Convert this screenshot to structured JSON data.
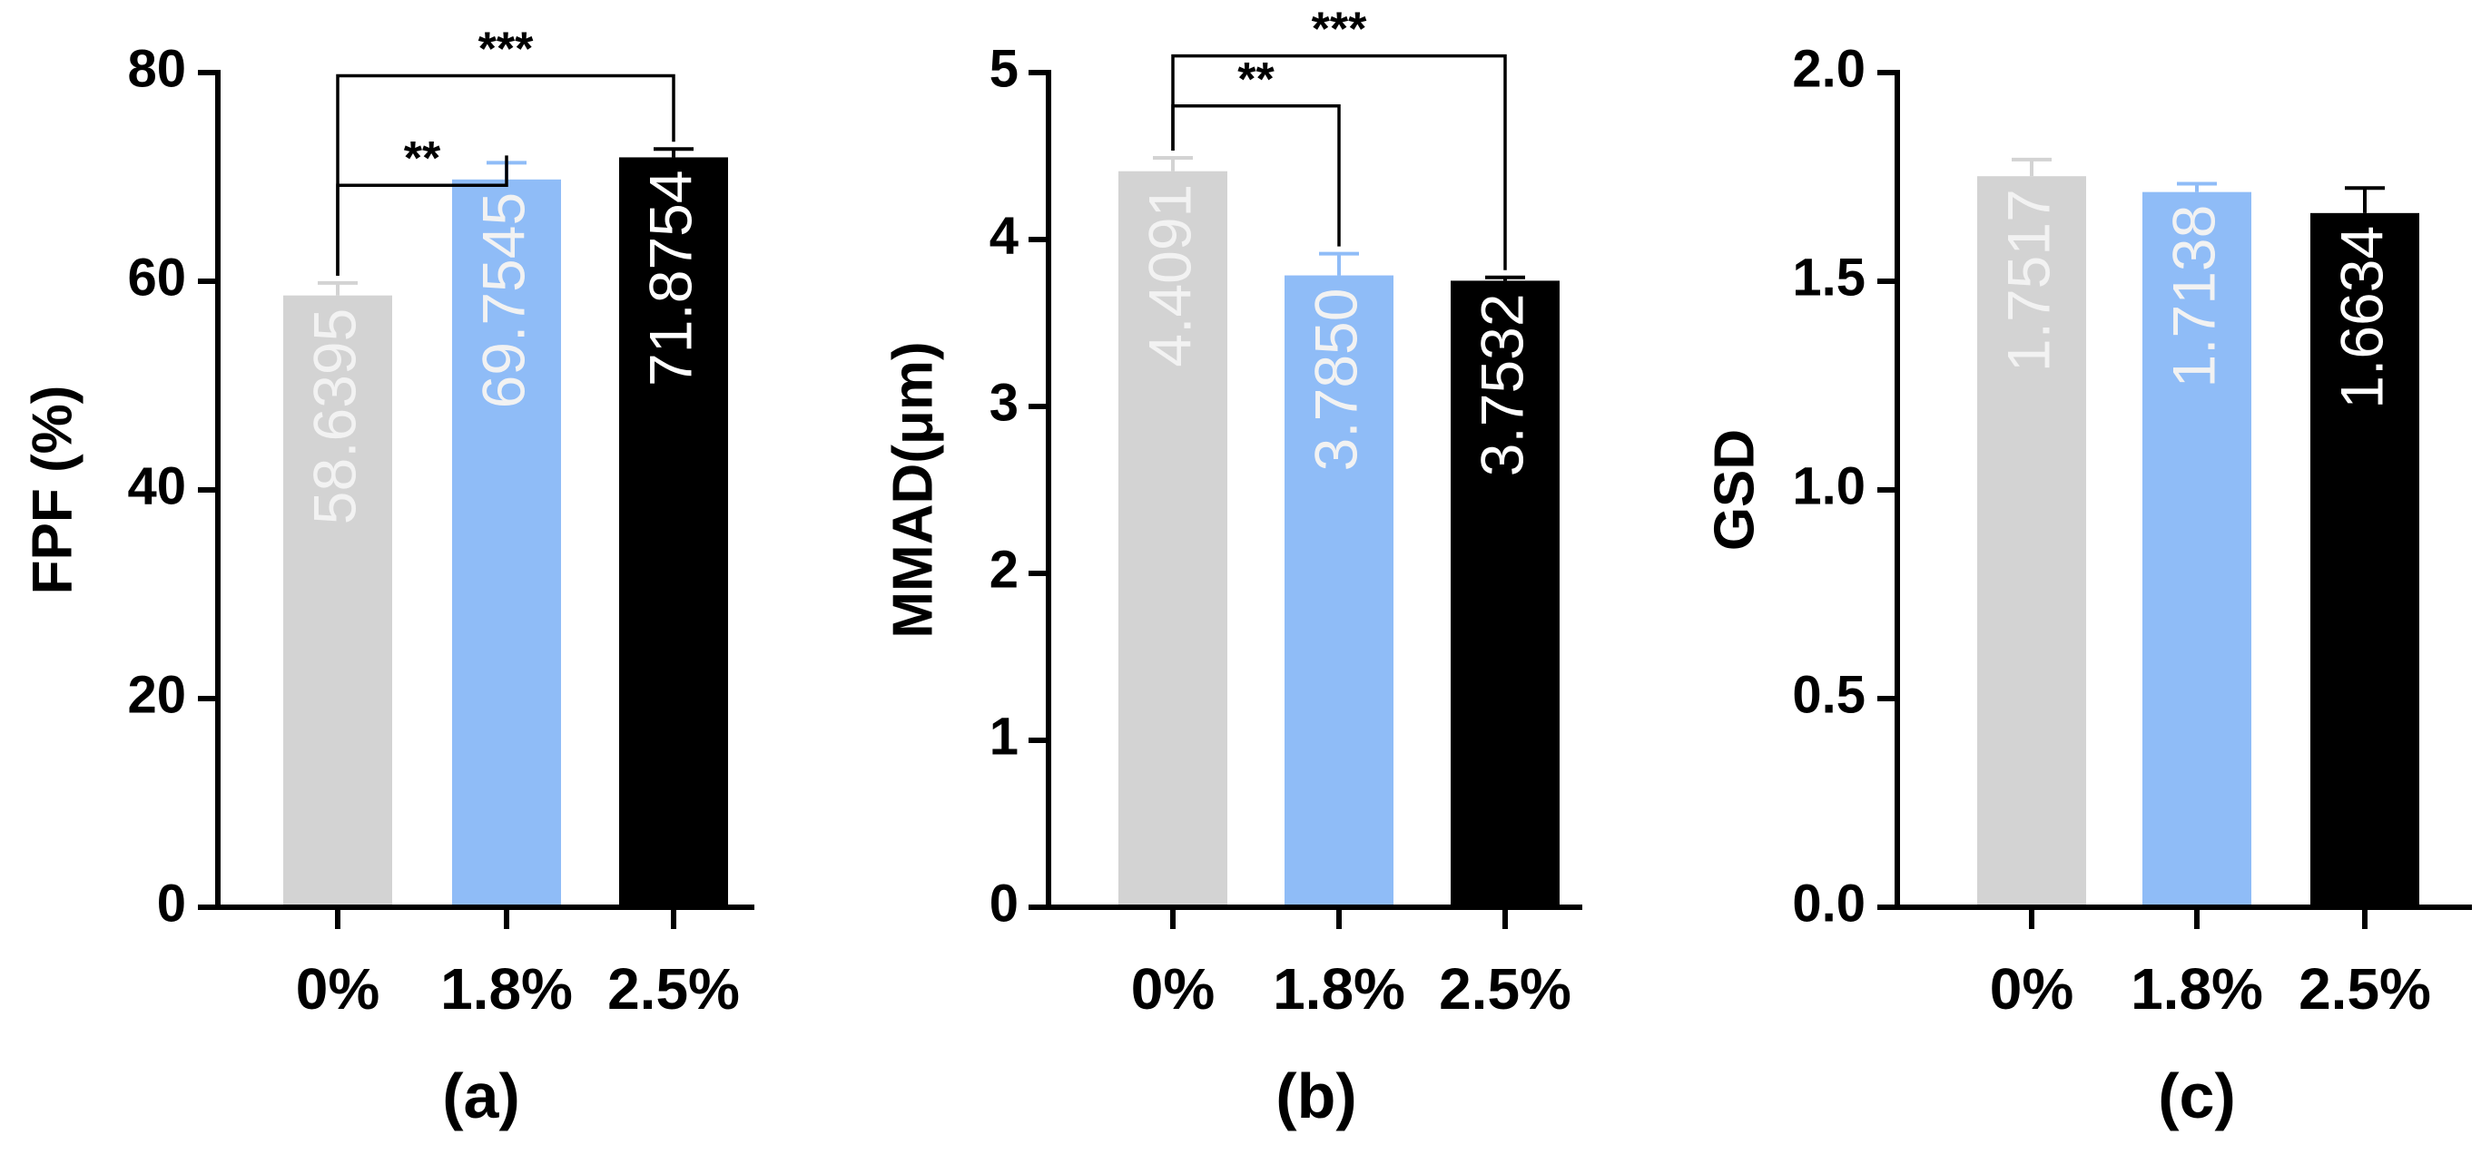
{
  "colors": {
    "bars": [
      "#d3d3d3",
      "#8fbcf7",
      "#000000"
    ],
    "value_text": [
      "#f2f2f2",
      "#f2f2f2",
      "#ffffff"
    ]
  },
  "chart_data": [
    {
      "type": "bar",
      "panel_label": "(a)",
      "ylabel": "FPF (%)",
      "categories": [
        "0%",
        "1.8%",
        "2.5%"
      ],
      "values": [
        58.6395,
        69.7545,
        71.8754
      ],
      "value_labels": [
        "58.6395",
        "69.7545",
        "71.8754"
      ],
      "errors": [
        1.2,
        1.6,
        0.8
      ],
      "ylim": [
        0,
        80
      ],
      "yticks": [
        0,
        20,
        40,
        60,
        80
      ],
      "ytick_labels": [
        "0",
        "20",
        "40",
        "60",
        "80"
      ],
      "significance": [
        {
          "from": 0,
          "to": 1,
          "label": "**",
          "level": 69.2
        },
        {
          "from": 0,
          "to": 2,
          "label": "***",
          "level": 79.7
        }
      ]
    },
    {
      "type": "bar",
      "panel_label": "(b)",
      "ylabel": "MMAD(μm)",
      "categories": [
        "0%",
        "1.8%",
        "2.5%"
      ],
      "values": [
        4.4091,
        3.785,
        3.7532
      ],
      "value_labels": [
        "4.4091",
        "3.7850",
        "3.7532"
      ],
      "errors": [
        0.08,
        0.13,
        0.02
      ],
      "ylim": [
        0,
        5
      ],
      "yticks": [
        0,
        1,
        2,
        3,
        4,
        5
      ],
      "ytick_labels": [
        "0",
        "1",
        "2",
        "3",
        "4",
        "5"
      ],
      "significance": [
        {
          "from": 0,
          "to": 1,
          "label": "**",
          "level": 4.8
        },
        {
          "from": 0,
          "to": 2,
          "label": "***",
          "level": 5.1
        }
      ]
    },
    {
      "type": "bar",
      "panel_label": "(c)",
      "ylabel": "GSD",
      "categories": [
        "0%",
        "1.8%",
        "2.5%"
      ],
      "values": [
        1.7517,
        1.7138,
        1.6634
      ],
      "value_labels": [
        "1.7517",
        "1.7138",
        "1.6634"
      ],
      "errors": [
        0.04,
        0.02,
        0.06
      ],
      "ylim": [
        0,
        2
      ],
      "yticks": [
        0,
        0.5,
        1,
        1.5,
        2
      ],
      "ytick_labels": [
        "0.0",
        "0.5",
        "1.0",
        "1.5",
        "2.0"
      ],
      "significance": []
    }
  ]
}
